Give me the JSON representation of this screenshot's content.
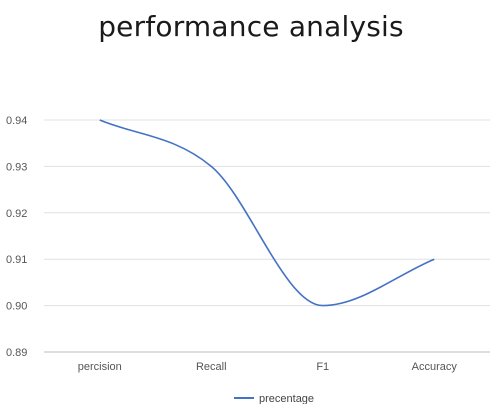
{
  "chart_data": {
    "type": "line",
    "title": "performance analysis",
    "categories": [
      "percision",
      "Recall",
      "F1",
      "Accuracy"
    ],
    "series": [
      {
        "name": "precentage",
        "values": [
          0.94,
          0.93,
          0.9,
          0.91
        ],
        "color": "#4472c4"
      }
    ],
    "ylim": [
      0.89,
      0.94
    ],
    "yticks": [
      "0.94",
      "0.93",
      "0.92",
      "0.91",
      "0.90",
      "0.89"
    ],
    "ytick_values": [
      0.94,
      0.93,
      0.92,
      0.91,
      0.9,
      0.89
    ],
    "grid": true,
    "legend_position": "bottom",
    "smooth": true
  }
}
